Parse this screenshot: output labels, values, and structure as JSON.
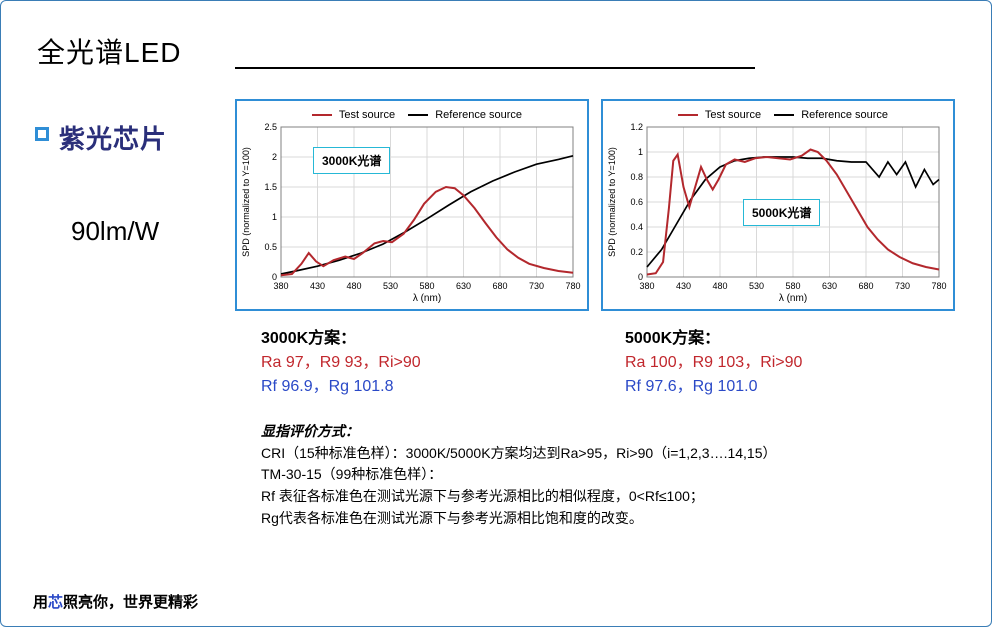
{
  "title": "全光谱LED",
  "bullet_label": "紫光芯片",
  "lmw": "90lm/W",
  "tagline_pre": "用",
  "tagline_xin": "芯",
  "tagline_post": "照亮你，世界更精彩",
  "legend": {
    "test": "Test source",
    "ref": "Reference source"
  },
  "axis": {
    "x_label": "λ (nm)",
    "y_label": "SPD (normalized to Y=100)",
    "x_min": 380,
    "x_max": 780,
    "x_step": 50,
    "x_ticks": [
      380,
      430,
      480,
      530,
      580,
      630,
      680,
      730,
      780
    ],
    "grid_color": "#d9d9d9",
    "axis_color": "#808080",
    "tick_font_size": 9
  },
  "colors": {
    "test_line": "#b3282d",
    "ref_line": "#000000",
    "frame_border": "#2f8ed6",
    "label_box_border": "#26b8d6",
    "title_color": "#000000",
    "bullet_text_color": "#2a2f7a",
    "bullet_border": "#2f8ed6",
    "ra_color": "#c1272d",
    "rf_color": "#2a49c7"
  },
  "chartA": {
    "title_box": "3000K光谱",
    "y_min": 0,
    "y_max": 2.5,
    "y_step": 0.5,
    "ref": [
      [
        380,
        0.05
      ],
      [
        400,
        0.1
      ],
      [
        430,
        0.18
      ],
      [
        460,
        0.28
      ],
      [
        490,
        0.4
      ],
      [
        520,
        0.55
      ],
      [
        550,
        0.75
      ],
      [
        580,
        0.97
      ],
      [
        610,
        1.2
      ],
      [
        640,
        1.42
      ],
      [
        670,
        1.6
      ],
      [
        700,
        1.75
      ],
      [
        730,
        1.88
      ],
      [
        760,
        1.96
      ],
      [
        780,
        2.02
      ]
    ],
    "test": [
      [
        380,
        0.03
      ],
      [
        395,
        0.05
      ],
      [
        408,
        0.22
      ],
      [
        418,
        0.4
      ],
      [
        428,
        0.26
      ],
      [
        438,
        0.18
      ],
      [
        452,
        0.28
      ],
      [
        468,
        0.34
      ],
      [
        480,
        0.3
      ],
      [
        492,
        0.4
      ],
      [
        508,
        0.56
      ],
      [
        520,
        0.6
      ],
      [
        532,
        0.58
      ],
      [
        548,
        0.72
      ],
      [
        562,
        0.95
      ],
      [
        576,
        1.22
      ],
      [
        592,
        1.42
      ],
      [
        606,
        1.5
      ],
      [
        618,
        1.48
      ],
      [
        630,
        1.36
      ],
      [
        645,
        1.15
      ],
      [
        660,
        0.9
      ],
      [
        675,
        0.66
      ],
      [
        690,
        0.46
      ],
      [
        705,
        0.32
      ],
      [
        720,
        0.22
      ],
      [
        740,
        0.15
      ],
      [
        760,
        0.1
      ],
      [
        780,
        0.07
      ]
    ]
  },
  "chartB": {
    "title_box": "5000K光谱",
    "y_min": 0,
    "y_max": 1.2,
    "y_step": 0.2,
    "ref": [
      [
        380,
        0.08
      ],
      [
        400,
        0.22
      ],
      [
        420,
        0.42
      ],
      [
        440,
        0.62
      ],
      [
        460,
        0.78
      ],
      [
        480,
        0.88
      ],
      [
        500,
        0.93
      ],
      [
        520,
        0.95
      ],
      [
        540,
        0.96
      ],
      [
        560,
        0.96
      ],
      [
        580,
        0.96
      ],
      [
        600,
        0.95
      ],
      [
        620,
        0.95
      ],
      [
        640,
        0.93
      ],
      [
        660,
        0.92
      ],
      [
        680,
        0.92
      ],
      [
        698,
        0.8
      ],
      [
        710,
        0.92
      ],
      [
        722,
        0.82
      ],
      [
        734,
        0.92
      ],
      [
        748,
        0.72
      ],
      [
        760,
        0.86
      ],
      [
        772,
        0.74
      ],
      [
        780,
        0.78
      ]
    ],
    "test": [
      [
        380,
        0.02
      ],
      [
        392,
        0.03
      ],
      [
        402,
        0.12
      ],
      [
        410,
        0.55
      ],
      [
        416,
        0.93
      ],
      [
        422,
        0.98
      ],
      [
        430,
        0.72
      ],
      [
        438,
        0.56
      ],
      [
        446,
        0.72
      ],
      [
        454,
        0.88
      ],
      [
        462,
        0.78
      ],
      [
        470,
        0.7
      ],
      [
        478,
        0.78
      ],
      [
        488,
        0.9
      ],
      [
        500,
        0.94
      ],
      [
        514,
        0.92
      ],
      [
        528,
        0.95
      ],
      [
        544,
        0.96
      ],
      [
        560,
        0.95
      ],
      [
        576,
        0.94
      ],
      [
        592,
        0.97
      ],
      [
        604,
        1.02
      ],
      [
        614,
        1.0
      ],
      [
        626,
        0.93
      ],
      [
        640,
        0.82
      ],
      [
        654,
        0.68
      ],
      [
        668,
        0.54
      ],
      [
        682,
        0.4
      ],
      [
        696,
        0.3
      ],
      [
        710,
        0.22
      ],
      [
        726,
        0.16
      ],
      [
        744,
        0.11
      ],
      [
        762,
        0.08
      ],
      [
        780,
        0.06
      ]
    ]
  },
  "schemeA": {
    "header": "3000K方案：",
    "ra_line": "Ra 97，R9 93，Ri>90",
    "rf_line": "Rf 96.9，Rg 101.8"
  },
  "schemeB": {
    "header": "5000K方案：",
    "ra_line": "Ra 100，R9 103，Ri>90",
    "rf_line": "Rf 97.6，Rg 101.0"
  },
  "eval": {
    "header": "显指评价方式：",
    "line1": "CRI（15种标准色样）：3000K/5000K方案均达到Ra>95，Ri>90（i=1,2,3….14,15）",
    "line2": "TM-30-15（99种标准色样）：",
    "line3": "Rf 表征各标准色在测试光源下与参考光源相比的相似程度，0<Rf≤100；",
    "line4": "Rg代表各标准色在测试光源下与参考光源相比饱和度的改变。"
  }
}
